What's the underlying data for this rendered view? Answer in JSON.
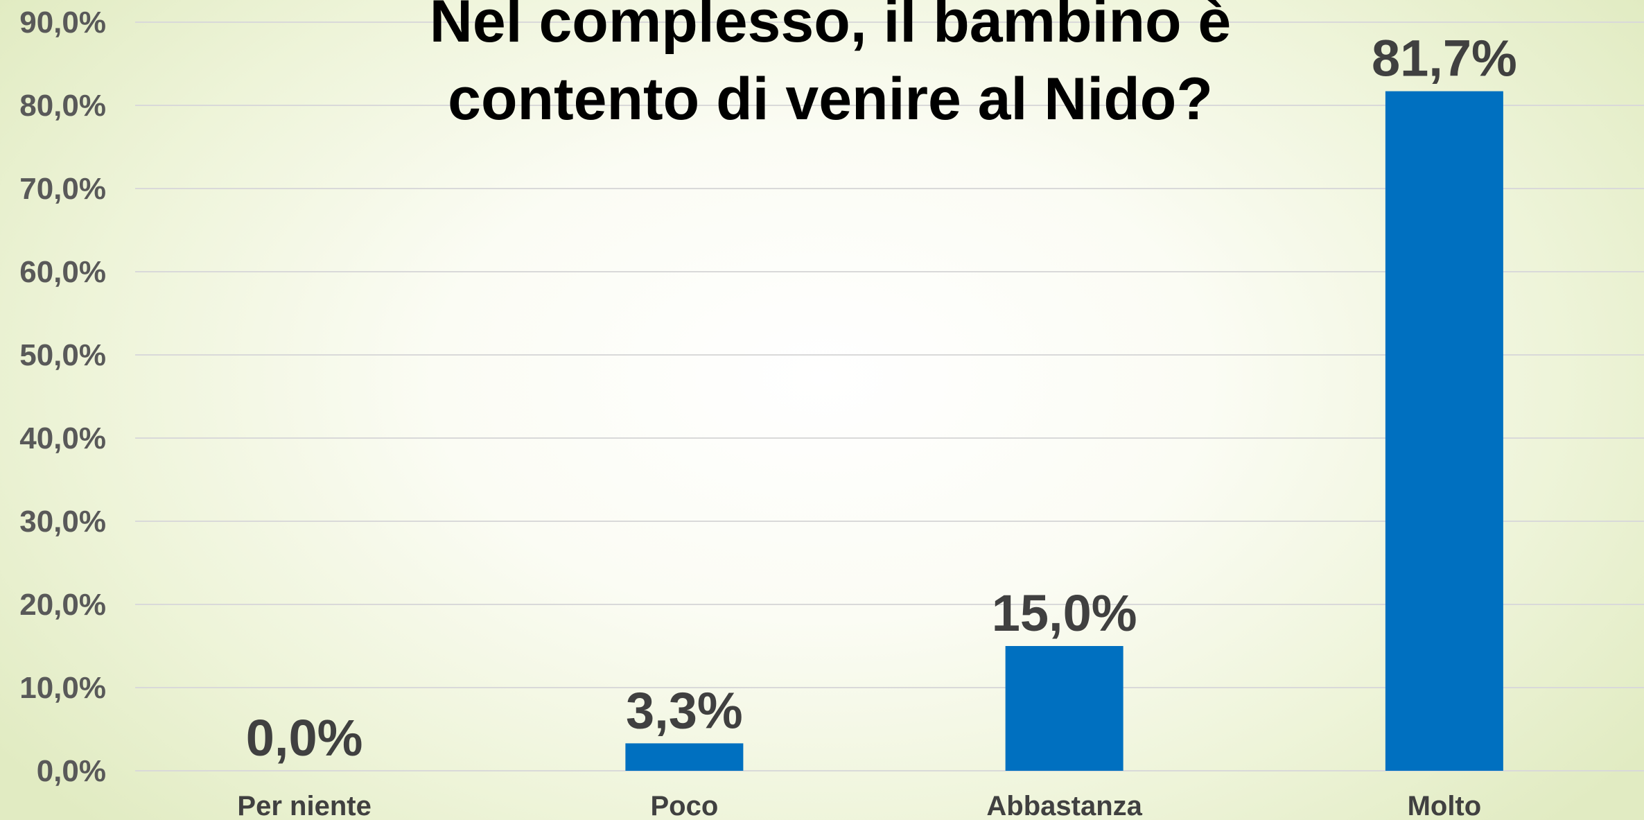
{
  "chart_data": {
    "type": "bar",
    "title_lines": [
      "Nel complesso, il bambino è",
      "contento di venire al Nido?"
    ],
    "categories": [
      "Per niente",
      "Poco",
      "Abbastanza",
      "Molto"
    ],
    "values": [
      0.0,
      3.3,
      15.0,
      81.7
    ],
    "data_labels": [
      "0,0%",
      "3,3%",
      "15,0%",
      "81,7%"
    ],
    "yticks": [
      "0,0%",
      "10,0%",
      "20,0%",
      "30,0%",
      "40,0%",
      "50,0%",
      "60,0%",
      "70,0%",
      "80,0%",
      "90,0%"
    ],
    "ylim": [
      0,
      90
    ],
    "xlabel": "",
    "ylabel": "",
    "grid": true,
    "legend": "none",
    "bar_color": "#0070c0"
  }
}
